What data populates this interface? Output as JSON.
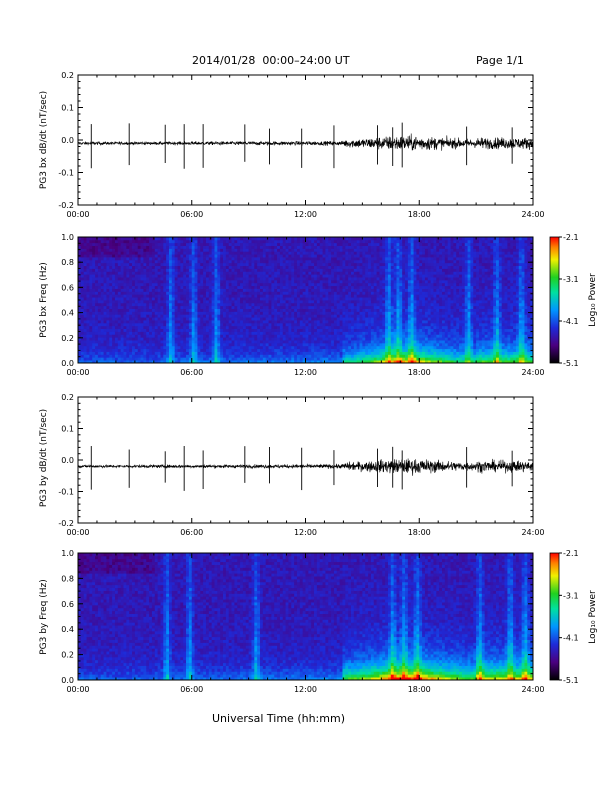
{
  "header": {
    "title": "2014/01/28  00:00–24:00 UT",
    "page": "Page 1/1"
  },
  "xaxis": {
    "title": "Universal Time (hh:mm)",
    "ticks": [
      "00:00",
      "06:00",
      "12:00",
      "18:00",
      "24:00"
    ],
    "range_hours": [
      0,
      24
    ]
  },
  "chart_data": [
    {
      "type": "line",
      "ylabel": "PG3 bx dB/dt (nT/sec)",
      "ylim": [
        -0.2,
        0.2
      ],
      "yticks": [
        "0.2",
        "0.1",
        "0.0",
        "-0.1",
        "-0.2"
      ],
      "baseline": -0.01,
      "spikes_hours": [
        0.7,
        2.7,
        4.6,
        5.6,
        6.6,
        8.8,
        10.1,
        11.8,
        13.5,
        15.8,
        16.6,
        17.1,
        20.5,
        22.9
      ],
      "noise_envelope": "activity increases after ~14:00 UT, peaking 16:00-19:00"
    },
    {
      "type": "heatmap",
      "ylabel": "PG3 bx Freq (Hz)",
      "yticks": [
        "1.0",
        "0.8",
        "0.6",
        "0.4",
        "0.2",
        "0.0"
      ],
      "ylim": [
        0,
        1
      ],
      "colorbar": {
        "label": "Log₁₀ Power",
        "ticks": [
          "-2.1",
          "-3.1",
          "-4.1",
          "-5.1"
        ],
        "range": [
          -5.1,
          -2.1
        ]
      },
      "power_trend": "low-frequency power highest 16:00-19:00 UT; vertical streaks near 05:00, 06:00, 16:30, 17:30, 22:00, 23:30"
    },
    {
      "type": "line",
      "ylabel": "PG3 by dB/dt (nT/sec)",
      "ylim": [
        -0.2,
        0.2
      ],
      "yticks": [
        "0.2",
        "0.1",
        "0.0",
        "-0.1",
        "-0.2"
      ],
      "baseline": -0.02,
      "spikes_hours": [
        0.7,
        2.7,
        4.6,
        5.6,
        6.6,
        8.8,
        10.1,
        11.8,
        13.5,
        15.8,
        16.6,
        17.1,
        20.5,
        22.9
      ],
      "noise_envelope": "activity increases after ~14:00 UT, peaking 16:00-19:00"
    },
    {
      "type": "heatmap",
      "ylabel": "PG3 by Freq (Hz)",
      "yticks": [
        "1.0",
        "0.8",
        "0.6",
        "0.4",
        "0.2",
        "0.0"
      ],
      "ylim": [
        0,
        1
      ],
      "colorbar": {
        "label": "Log₁₀ Power",
        "ticks": [
          "-2.1",
          "-3.1",
          "-4.1",
          "-5.1"
        ],
        "range": [
          -5.1,
          -2.1
        ]
      },
      "power_trend": "low-frequency power highest 16:00-19:00 UT; broad enhancement below 0.2 Hz from 14:00-24:00"
    }
  ]
}
